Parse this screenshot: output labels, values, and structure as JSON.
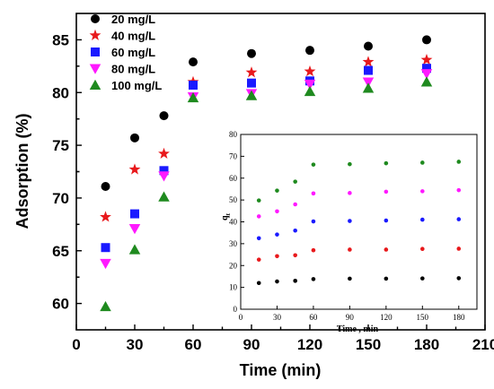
{
  "chart_data": [
    {
      "type": "scatter",
      "xlabel": "Time (min)",
      "ylabel": "Adsorption (%)",
      "xlim": [
        0,
        210
      ],
      "ylim": [
        57.5,
        87.5
      ],
      "xticks": [
        "0",
        "30",
        "60",
        "90",
        "120",
        "150",
        "180",
        "210"
      ],
      "yticks": [
        "60",
        "65",
        "70",
        "75",
        "80",
        "85"
      ],
      "legend_position": "top-left",
      "series": [
        {
          "name": "20 mg/L",
          "color": "#000000",
          "marker": "circle",
          "x": [
            15,
            30,
            45,
            60,
            90,
            120,
            150,
            180
          ],
          "values": [
            71.1,
            75.7,
            77.8,
            82.9,
            83.7,
            84.0,
            84.4,
            85.0
          ]
        },
        {
          "name": "40 mg/L",
          "color": "#e8191c",
          "marker": "star",
          "x": [
            15,
            30,
            45,
            60,
            90,
            120,
            150,
            180
          ],
          "values": [
            68.2,
            72.7,
            74.2,
            81.0,
            81.9,
            82.0,
            82.9,
            83.1
          ]
        },
        {
          "name": "60 mg/L",
          "color": "#1a1aff",
          "marker": "square",
          "x": [
            15,
            30,
            45,
            60,
            90,
            120,
            150,
            180
          ],
          "values": [
            65.3,
            68.5,
            72.6,
            80.7,
            80.9,
            81.1,
            82.1,
            82.3
          ]
        },
        {
          "name": "80 mg/L",
          "color": "#ff19ff",
          "marker": "triangle-down",
          "x": [
            15,
            30,
            45,
            60,
            90,
            120,
            150,
            180
          ],
          "values": [
            63.8,
            67.1,
            72.1,
            79.6,
            79.9,
            80.8,
            81.0,
            81.8
          ]
        },
        {
          "name": "100 mg/L",
          "color": "#1f8a1f",
          "marker": "triangle-up",
          "x": [
            15,
            30,
            45,
            60,
            90,
            120,
            150,
            180
          ],
          "values": [
            59.7,
            65.1,
            70.1,
            79.5,
            79.7,
            80.1,
            80.4,
            81.0
          ]
        }
      ]
    },
    {
      "type": "scatter",
      "xlabel": "Time , min",
      "ylabel": "q",
      "ylabel_subscript": "t",
      "xlim": [
        0,
        195
      ],
      "ylim": [
        0,
        80
      ],
      "xticks": [
        "0",
        "30",
        "60",
        "90",
        "120",
        "150",
        "180"
      ],
      "yticks": [
        "0",
        "10",
        "20",
        "30",
        "40",
        "50",
        "60",
        "70",
        "80"
      ],
      "series": [
        {
          "color": "#000000",
          "x": [
            15,
            30,
            45,
            60,
            90,
            120,
            150,
            180
          ],
          "values": [
            12.0,
            12.7,
            13.0,
            13.8,
            14.0,
            14.0,
            14.1,
            14.2
          ]
        },
        {
          "color": "#e8191c",
          "x": [
            15,
            30,
            45,
            60,
            90,
            120,
            150,
            180
          ],
          "values": [
            22.7,
            24.3,
            24.7,
            27.0,
            27.3,
            27.3,
            27.6,
            27.7
          ]
        },
        {
          "color": "#1a1aff",
          "x": [
            15,
            30,
            45,
            60,
            90,
            120,
            150,
            180
          ],
          "values": [
            32.5,
            34.2,
            36.0,
            40.2,
            40.4,
            40.6,
            41.0,
            41.2
          ]
        },
        {
          "color": "#ff19ff",
          "x": [
            15,
            30,
            45,
            60,
            90,
            120,
            150,
            180
          ],
          "values": [
            42.5,
            44.8,
            48.0,
            53.0,
            53.2,
            53.8,
            54.0,
            54.5
          ]
        },
        {
          "color": "#1f8a1f",
          "x": [
            15,
            30,
            45,
            60,
            90,
            120,
            150,
            180
          ],
          "values": [
            49.8,
            54.3,
            58.4,
            66.2,
            66.4,
            66.8,
            67.1,
            67.5
          ]
        }
      ]
    }
  ]
}
